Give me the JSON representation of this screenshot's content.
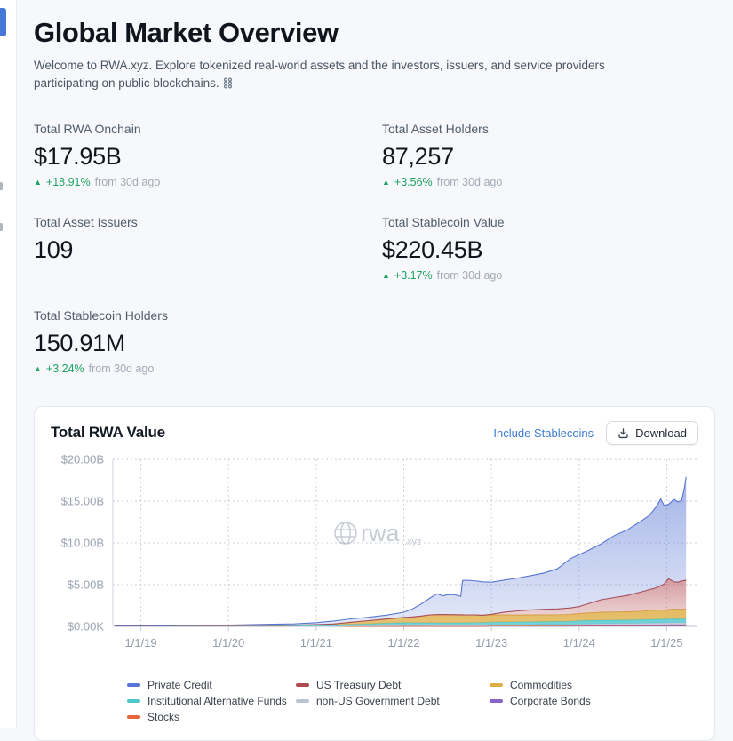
{
  "header": {
    "title": "Global Market Overview",
    "subtitle": "Welcome to RWA.xyz. Explore tokenized real-world assets and the investors, issuers, and service providers participating on public blockchains."
  },
  "icons": {
    "up_triangle": "▲"
  },
  "colors": {
    "accent_blue": "#4577d6",
    "link_blue": "#3e7cd6",
    "positive_green": "#1ea361"
  },
  "stats": [
    {
      "label": "Total RWA Onchain",
      "value": "$17.95B",
      "change_pct": "+18.91%",
      "change_period": "from 30d ago"
    },
    {
      "label": "Total Asset Holders",
      "value": "87,257",
      "change_pct": "+3.56%",
      "change_period": "from 30d ago"
    },
    {
      "label": "Total Asset Issuers",
      "value": "109"
    },
    {
      "label": "Total Stablecoin Value",
      "value": "$220.45B",
      "change_pct": "+3.17%",
      "change_period": "from 30d ago"
    },
    {
      "label": "Total Stablecoin Holders",
      "value": "150.91M",
      "change_pct": "+3.24%",
      "change_period": "from 30d ago"
    }
  ],
  "chart_card": {
    "include_stablecoins_label": "Include Stablecoins",
    "download_label": "Download"
  },
  "chart_data": {
    "type": "area",
    "stacked": true,
    "title": "Total RWA Value",
    "unit": "USD billions",
    "watermark": {
      "brand": "rwa",
      "suffix": ".xyz"
    },
    "grid": "dashed",
    "legend_position": "bottom",
    "xlim": [
      2018.68,
      2025.35
    ],
    "ylim": [
      0,
      20
    ],
    "x_ticks": [
      {
        "value": 2019,
        "label": "1/1/19"
      },
      {
        "value": 2020,
        "label": "1/1/20"
      },
      {
        "value": 2021,
        "label": "1/1/21"
      },
      {
        "value": 2022,
        "label": "1/1/22"
      },
      {
        "value": 2023,
        "label": "1/1/23"
      },
      {
        "value": 2024,
        "label": "1/1/24"
      },
      {
        "value": 2025,
        "label": "1/1/25"
      }
    ],
    "y_ticks": [
      {
        "value": 0,
        "label": "$0.00K"
      },
      {
        "value": 5,
        "label": "$5.00B"
      },
      {
        "value": 10,
        "label": "$10.00B"
      },
      {
        "value": 15,
        "label": "$15.00B"
      },
      {
        "value": 20,
        "label": "$20.00B"
      }
    ],
    "x": [
      2018.7,
      2019.0,
      2019.25,
      2019.5,
      2019.75,
      2020.0,
      2020.25,
      2020.5,
      2020.75,
      2021.0,
      2021.2,
      2021.4,
      2021.6,
      2021.8,
      2022.0,
      2022.1,
      2022.2,
      2022.3,
      2022.38,
      2022.45,
      2022.5,
      2022.58,
      2022.65,
      2022.67,
      2022.7,
      2022.8,
      2022.9,
      2023.0,
      2023.15,
      2023.3,
      2023.45,
      2023.6,
      2023.75,
      2023.9,
      2024.0,
      2024.1,
      2024.25,
      2024.4,
      2024.55,
      2024.7,
      2024.8,
      2024.88,
      2024.93,
      2024.97,
      2025.02,
      2025.08,
      2025.13,
      2025.17,
      2025.2,
      2025.22
    ],
    "series": [
      {
        "name": "Corporate Bonds",
        "color": "#8a63c8",
        "solid": true,
        "values": [
          0,
          0,
          0,
          0,
          0,
          0,
          0,
          0,
          0,
          0,
          0,
          0,
          0.01,
          0.01,
          0.02,
          0.02,
          0.02,
          0.02,
          0.02,
          0.02,
          0.02,
          0.02,
          0.02,
          0.02,
          0.02,
          0.02,
          0.02,
          0.04,
          0.04,
          0.04,
          0.04,
          0.04,
          0.04,
          0.04,
          0.06,
          0.06,
          0.06,
          0.06,
          0.06,
          0.06,
          0.06,
          0.06,
          0.06,
          0.06,
          0.08,
          0.08,
          0.08,
          0.08,
          0.08,
          0.08
        ]
      },
      {
        "name": "Stocks",
        "color": "#e8643c",
        "solid": true,
        "values": [
          0,
          0,
          0,
          0,
          0,
          0,
          0,
          0,
          0,
          0,
          0,
          0,
          0,
          0,
          0,
          0,
          0,
          0,
          0,
          0,
          0,
          0,
          0,
          0,
          0,
          0,
          0,
          0.01,
          0.01,
          0.02,
          0.02,
          0.03,
          0.03,
          0.04,
          0.04,
          0.05,
          0.06,
          0.07,
          0.07,
          0.08,
          0.1,
          0.1,
          0.11,
          0.11,
          0.11,
          0.12,
          0.12,
          0.12,
          0.12,
          0.12
        ]
      },
      {
        "name": "non-US Government Debt",
        "color": "#b8c3d4",
        "solid": true,
        "values": [
          0,
          0,
          0,
          0,
          0,
          0,
          0,
          0,
          0,
          0,
          0,
          0.05,
          0.08,
          0.12,
          0.15,
          0.13,
          0.12,
          0.11,
          0.11,
          0.1,
          0.1,
          0.1,
          0.1,
          0.1,
          0.1,
          0.11,
          0.11,
          0.12,
          0.12,
          0.12,
          0.12,
          0.13,
          0.13,
          0.14,
          0.18,
          0.19,
          0.2,
          0.21,
          0.22,
          0.23,
          0.24,
          0.24,
          0.25,
          0.25,
          0.25,
          0.25,
          0.25,
          0.25,
          0.25,
          0.25
        ]
      },
      {
        "name": "Institutional Alternative Funds",
        "color": "#4cc8ce",
        "solid": true,
        "values": [
          0.06,
          0.07,
          0.07,
          0.08,
          0.09,
          0.1,
          0.11,
          0.12,
          0.14,
          0.18,
          0.19,
          0.2,
          0.22,
          0.25,
          0.28,
          0.29,
          0.3,
          0.3,
          0.31,
          0.31,
          0.31,
          0.32,
          0.32,
          0.32,
          0.32,
          0.33,
          0.33,
          0.34,
          0.35,
          0.36,
          0.37,
          0.37,
          0.38,
          0.39,
          0.4,
          0.41,
          0.42,
          0.42,
          0.43,
          0.44,
          0.44,
          0.45,
          0.45,
          0.45,
          0.45,
          0.45,
          0.45,
          0.45,
          0.45,
          0.45
        ]
      },
      {
        "name": "Commodities",
        "color": "#dfae47",
        "solid": true,
        "values": [
          0,
          0,
          0,
          0,
          0,
          0,
          0,
          0,
          0,
          0.02,
          0.1,
          0.25,
          0.38,
          0.5,
          0.62,
          0.7,
          0.8,
          0.95,
          0.98,
          1.0,
          0.98,
          0.96,
          0.95,
          0.95,
          0.94,
          0.92,
          0.88,
          0.85,
          0.84,
          0.82,
          0.81,
          0.8,
          0.8,
          0.82,
          0.85,
          0.9,
          0.95,
          0.95,
          0.97,
          1.0,
          1.05,
          1.08,
          1.1,
          1.1,
          1.12,
          1.15,
          1.15,
          1.15,
          1.15,
          1.15
        ]
      },
      {
        "name": "US Treasury Debt",
        "color": "#b0494f",
        "values": [
          0,
          0,
          0,
          0,
          0,
          0,
          0,
          0,
          0,
          0,
          0,
          0,
          0,
          0,
          0,
          0,
          0,
          0,
          0,
          0,
          0,
          0,
          0,
          0,
          0,
          0,
          0,
          0.1,
          0.35,
          0.5,
          0.62,
          0.68,
          0.72,
          0.78,
          0.85,
          1.1,
          1.5,
          1.75,
          1.95,
          2.3,
          2.5,
          2.7,
          2.9,
          3.1,
          3.7,
          3.3,
          3.25,
          3.4,
          3.45,
          3.5
        ]
      },
      {
        "name": "Private Credit",
        "color": "#5775d4",
        "values": [
          0.02,
          0.03,
          0.02,
          0.04,
          0.05,
          0.06,
          0.1,
          0.14,
          0.16,
          0.25,
          0.36,
          0.4,
          0.41,
          0.47,
          0.63,
          0.96,
          1.46,
          2.02,
          2.48,
          2.22,
          2.4,
          2.4,
          2.2,
          4.1,
          4.15,
          4.1,
          4.0,
          3.84,
          3.84,
          3.94,
          4.11,
          4.35,
          4.79,
          5.9,
          6.22,
          6.38,
          6.69,
          7.41,
          7.86,
          8.45,
          8.89,
          9.7,
          10.4,
          9.4,
          8.9,
          9.85,
          9.6,
          9.65,
          11.0,
          12.35
        ]
      }
    ],
    "legend_order": [
      "Private Credit",
      "US Treasury Debt",
      "Commodities",
      "Institutional Alternative Funds",
      "non-US Government Debt",
      "Corporate Bonds",
      "Stocks"
    ]
  }
}
